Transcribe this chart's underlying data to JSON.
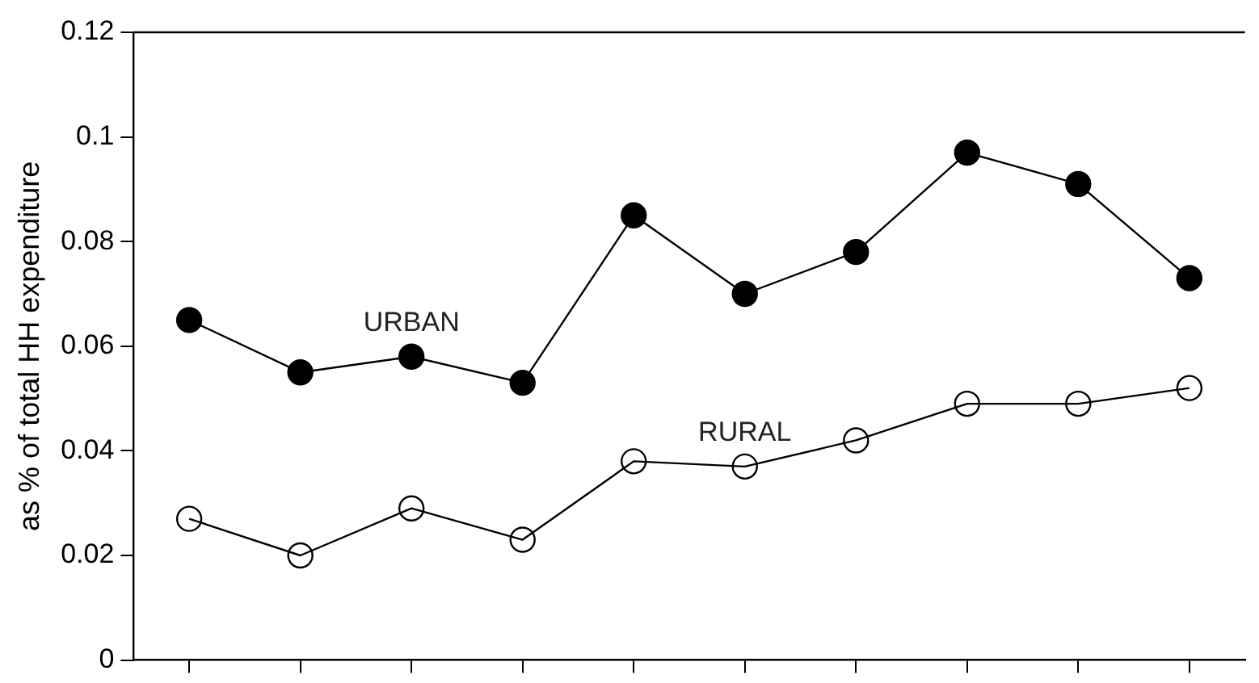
{
  "chart_data": {
    "type": "line",
    "ylabel": "as % of total HH expenditure",
    "categories": [
      null,
      null,
      null,
      null,
      null,
      null,
      null,
      null,
      null,
      null
    ],
    "series": [
      {
        "name": "URBAN",
        "color": "#000000",
        "values": [
          0.065,
          0.055,
          0.058,
          0.053,
          0.085,
          0.07,
          0.078,
          0.097,
          0.091,
          0.073
        ]
      },
      {
        "name": "RURAL",
        "color": "#000000",
        "values": [
          0.027,
          0.02,
          0.029,
          0.023,
          0.038,
          0.037,
          0.042,
          0.049,
          0.049,
          0.052
        ]
      }
    ],
    "ylim": [
      0,
      0.12
    ],
    "yticks": [
      0,
      0.02,
      0.04,
      0.06,
      0.08,
      0.1,
      0.12
    ],
    "grid": false,
    "legend": false,
    "tick_labels": "y",
    "marker": "circle",
    "line_style": "solid"
  }
}
